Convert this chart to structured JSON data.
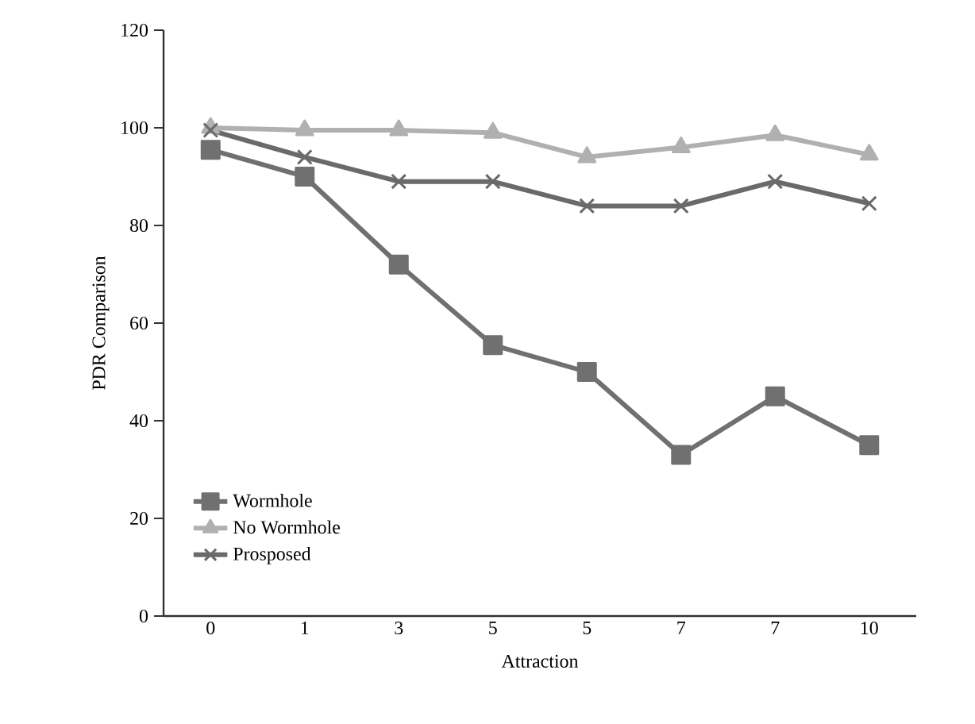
{
  "chart_data": {
    "type": "line",
    "xlabel": "Attraction",
    "ylabel": "PDR Comparison",
    "categories": [
      "0",
      "1",
      "3",
      "5",
      "5",
      "7",
      "7",
      "10"
    ],
    "series": [
      {
        "name": "Wormhole",
        "color": "#707070",
        "marker": "square",
        "values": [
          95.5,
          90,
          72,
          55.5,
          50,
          33,
          45,
          35
        ]
      },
      {
        "name": "No Wormhole",
        "color": "#b0b0b0",
        "marker": "triangle",
        "values": [
          100,
          99.5,
          99.5,
          99,
          94,
          96,
          98.5,
          94.5
        ]
      },
      {
        "name": "Prosposed",
        "color": "#6a6a6a",
        "marker": "cross",
        "values": [
          99.5,
          94,
          89,
          89,
          84,
          84,
          89,
          84.5
        ]
      }
    ],
    "ylim": [
      0,
      120
    ],
    "yticks": [
      0,
      20,
      40,
      60,
      80,
      100,
      120
    ],
    "grid": false,
    "legend": "bottom left",
    "line_style": "solid"
  }
}
